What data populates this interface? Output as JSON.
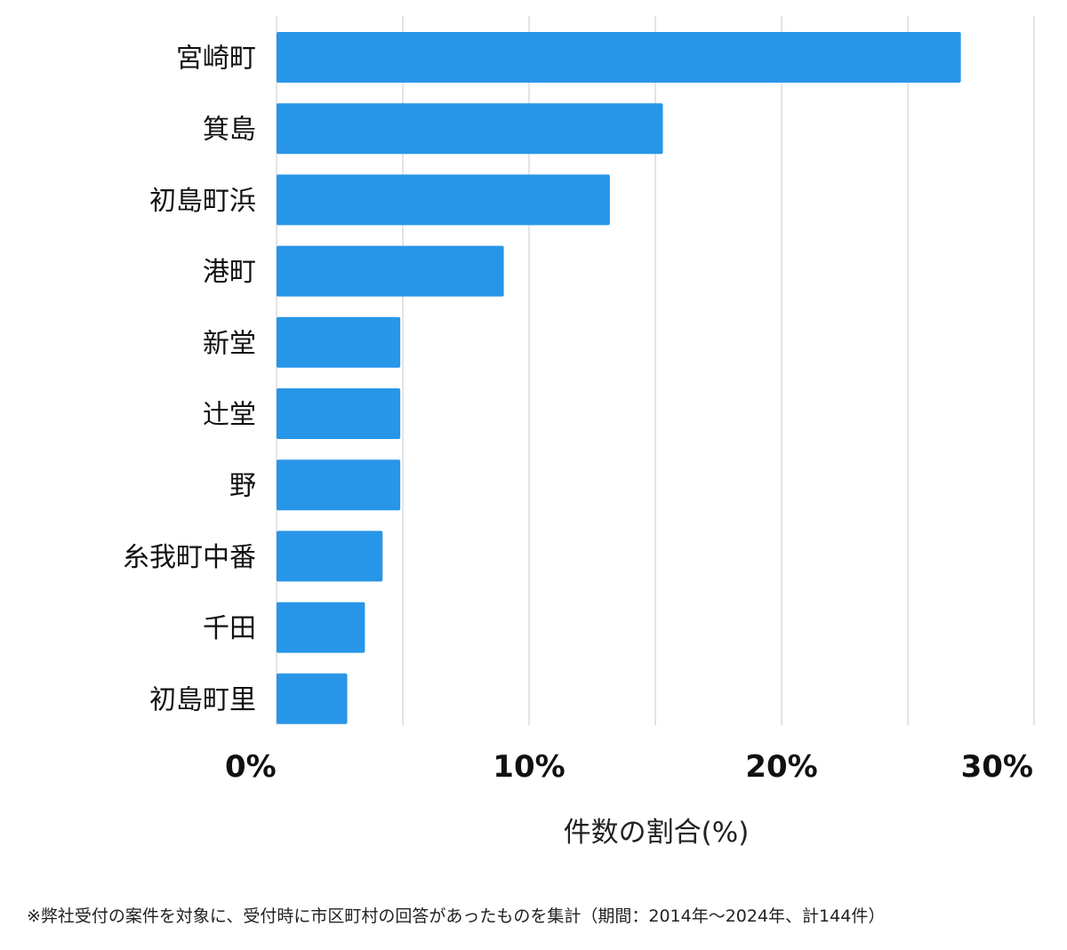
{
  "chart_data": {
    "type": "bar",
    "orientation": "horizontal",
    "categories": [
      "宮崎町",
      "箕島",
      "初島町浜",
      "港町",
      "新堂",
      "辻堂",
      "野",
      "糸我町中番",
      "千田",
      "初島町里"
    ],
    "values": [
      27.1,
      15.3,
      13.2,
      9.0,
      4.9,
      4.9,
      4.9,
      4.2,
      3.5,
      2.8
    ],
    "xlabel": "件数の割合(%)",
    "xlim": [
      0,
      30
    ],
    "xticks": [
      0,
      10,
      20,
      30
    ],
    "xtick_labels": [
      "0%",
      "10%",
      "20%",
      "30%"
    ],
    "gridlines": [
      0,
      5,
      10,
      15,
      20,
      25,
      30
    ],
    "grid": true,
    "bar_color": "#2896e8"
  },
  "footnote": "※弊社受付の案件を対象に、受付時に市区町村の回答があったものを集計（期間：2014年～2024年、計144件）"
}
